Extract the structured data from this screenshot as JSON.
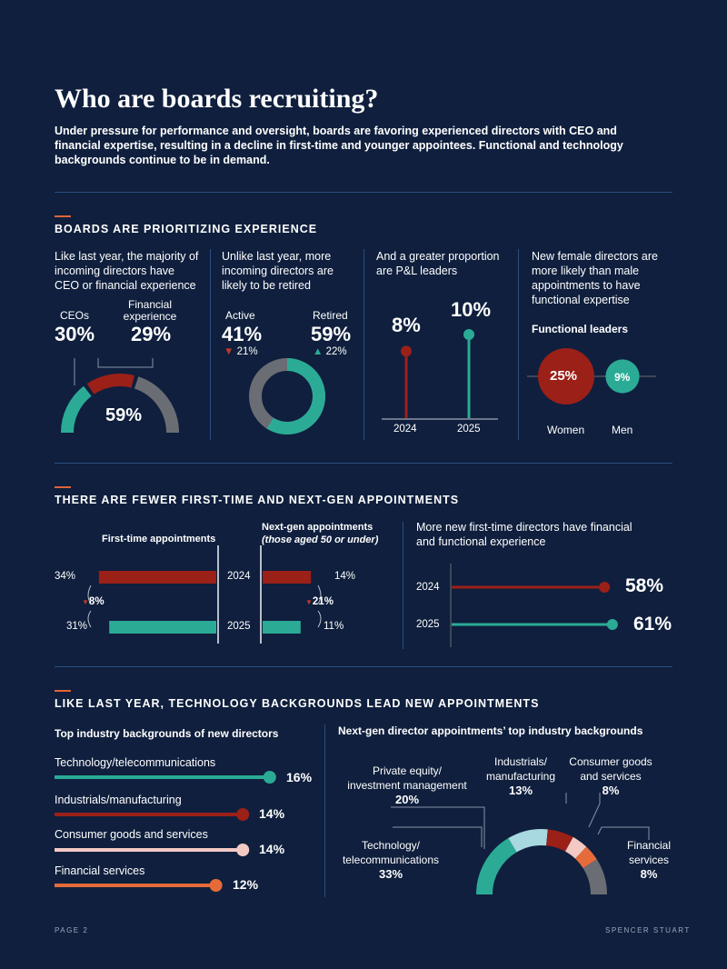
{
  "header": {
    "title": "Who are boards recruiting?",
    "intro": "Under pressure for performance and oversight, boards are favoring experienced directors with CEO and financial expertise, resulting in a decline in first-time and younger appointees. Functional and technology backgrounds continue to be in demand."
  },
  "colors": {
    "background": "#0f1f3d",
    "teal": "#2bab96",
    "red": "#9b2018",
    "gray": "#6b6d74",
    "lightblue": "#a8d8e0",
    "pink": "#f3c9c4",
    "orange": "#e56b3a",
    "rule": "#2a4e80"
  },
  "section1": {
    "heading": "BOARDS ARE PRIORITIZING EXPERIENCE",
    "col1": {
      "text": "Like last year, the majority of incoming directors have CEO or financial experience",
      "ceo_label": "CEOs",
      "ceo_value": "30%",
      "fin_label": "Financial experience",
      "fin_value": "29%",
      "total_value": "59%"
    },
    "col2": {
      "text": "Unlike last year, more incoming directors are likely to be retired",
      "active_label": "Active",
      "active_value": "41%",
      "active_change": "21%",
      "retired_label": "Retired",
      "retired_value": "59%",
      "retired_change": "22%"
    },
    "col3": {
      "text": "And a greater proportion are P&L leaders",
      "v2024": "8%",
      "v2025": "10%",
      "y2024": "2024",
      "y2025": "2025"
    },
    "col4": {
      "text": "New female directors are more likely than male appointments to have functional expertise",
      "subtitle": "Functional leaders",
      "women_value": "25%",
      "men_value": "9%",
      "women_label": "Women",
      "men_label": "Men"
    }
  },
  "section2": {
    "heading": "THERE ARE FEWER FIRST-TIME AND NEXT-GEN APPOINTMENTS",
    "first_time_title": "First-time appointments",
    "next_gen_title": "Next-gen appointments",
    "next_gen_sub": "(those aged 50 or under)",
    "ft_2024": "34%",
    "ft_2025": "31%",
    "ft_change": "8%",
    "ng_2024": "14%",
    "ng_2025": "11%",
    "ng_change": "21%",
    "year_2024": "2024",
    "year_2025": "2025",
    "right_text": "More new first-time directors have financial and functional experience",
    "r_2024": "58%",
    "r_2025": "61%",
    "r_year_2024": "2024",
    "r_year_2025": "2025"
  },
  "section3": {
    "heading": "LIKE LAST YEAR, TECHNOLOGY BACKGROUNDS LEAD NEW APPOINTMENTS",
    "left_title": "Top industry backgrounds of new directors",
    "right_title": "Next-gen director appointments’ top industry backgrounds",
    "bars": [
      {
        "label": "Technology/telecommunications",
        "value": "16%"
      },
      {
        "label": "Industrials/manufacturing",
        "value": "14%"
      },
      {
        "label": "Consumer goods and services",
        "value": "14%"
      },
      {
        "label": "Financial services",
        "value": "12%"
      }
    ],
    "donut": {
      "pe_l1": "Private equity/",
      "pe_l2": "investment management",
      "pe_v": "20%",
      "ind_l1": "Industrials/",
      "ind_l2": "manufacturing",
      "ind_v": "13%",
      "cg_l1": "Consumer goods",
      "cg_l2": "and services",
      "cg_v": "8%",
      "tech_l1": "Technology/",
      "tech_l2": "telecommunications",
      "tech_v": "33%",
      "fs_l1": "Financial",
      "fs_l2": "services",
      "fs_v": "8%"
    }
  },
  "footer": {
    "page": "PAGE 2",
    "brand": "SPENCER STUART"
  },
  "chart_data": [
    {
      "type": "pie",
      "title": "Like last year, the majority of incoming directors have CEO or financial experience",
      "categories": [
        "CEOs",
        "Financial experience"
      ],
      "values": [
        30,
        29
      ],
      "total": 59
    },
    {
      "type": "pie",
      "title": "Unlike last year, more incoming directors are likely to be retired",
      "categories": [
        "Active",
        "Retired"
      ],
      "values": [
        41,
        59
      ],
      "changes": [
        -21,
        22
      ]
    },
    {
      "type": "bar",
      "title": "And a greater proportion are P&L leaders",
      "categories": [
        "2024",
        "2025"
      ],
      "values": [
        8,
        10
      ]
    },
    {
      "type": "bar",
      "title": "Functional leaders",
      "categories": [
        "Women",
        "Men"
      ],
      "values": [
        25,
        9
      ]
    },
    {
      "type": "bar",
      "title": "First-time appointments",
      "categories": [
        "2024",
        "2025"
      ],
      "values": [
        34,
        31
      ],
      "change": -8
    },
    {
      "type": "bar",
      "title": "Next-gen appointments",
      "categories": [
        "2024",
        "2025"
      ],
      "values": [
        14,
        11
      ],
      "change": -21
    },
    {
      "type": "bar",
      "title": "More new first-time directors have financial and functional experience",
      "categories": [
        "2024",
        "2025"
      ],
      "values": [
        58,
        61
      ]
    },
    {
      "type": "bar",
      "title": "Top industry backgrounds of new directors",
      "categories": [
        "Technology/telecommunications",
        "Industrials/manufacturing",
        "Consumer goods and services",
        "Financial services"
      ],
      "values": [
        16,
        14,
        14,
        12
      ]
    },
    {
      "type": "pie",
      "title": "Next-gen director appointments’ top industry backgrounds",
      "categories": [
        "Technology/telecommunications",
        "Private equity/investment management",
        "Industrials/manufacturing",
        "Consumer goods and services",
        "Financial services"
      ],
      "values": [
        33,
        20,
        13,
        8,
        8
      ]
    }
  ]
}
